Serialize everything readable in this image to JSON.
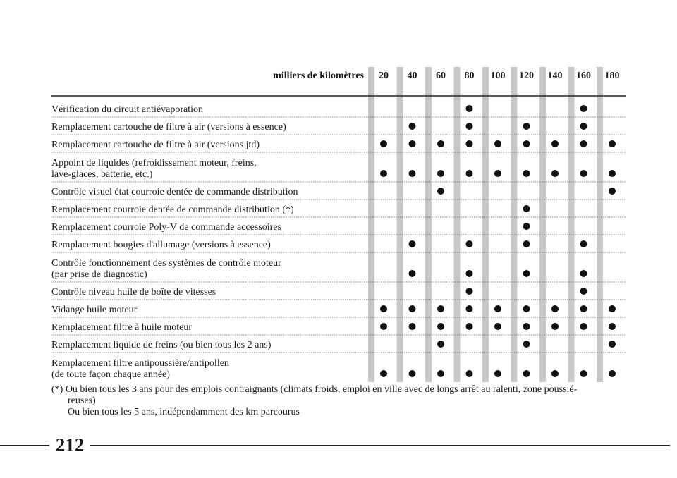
{
  "table": {
    "header_label": "milliers de kilomètres",
    "columns": [
      20,
      40,
      60,
      80,
      100,
      120,
      140,
      160,
      180
    ],
    "rows": [
      {
        "label": [
          "Vérification du circuit antiévaporation"
        ],
        "km": [
          80,
          160
        ]
      },
      {
        "label": [
          "Remplacement cartouche de filtre à air (versions à essence)"
        ],
        "km": [
          40,
          80,
          120,
          160
        ]
      },
      {
        "label": [
          "Remplacement cartouche de filtre à air (versions jtd)"
        ],
        "km": [
          20,
          40,
          60,
          80,
          100,
          120,
          140,
          160,
          180
        ]
      },
      {
        "label": [
          "Appoint de liquides (refroidissement moteur, freins,",
          "lave-glaces, batterie, etc.)"
        ],
        "km": [
          20,
          40,
          60,
          80,
          100,
          120,
          140,
          160,
          180
        ]
      },
      {
        "label": [
          "Contrôle visuel état courroie dentée de commande distribution"
        ],
        "km": [
          60,
          180
        ]
      },
      {
        "label": [
          "Remplacement courroie dentée de commande distribution (*)"
        ],
        "km": [
          120
        ]
      },
      {
        "label": [
          "Remplacement courroie Poly-V de commande accessoires"
        ],
        "km": [
          120
        ]
      },
      {
        "label": [
          "Remplacement bougies d'allumage (versions à essence)"
        ],
        "km": [
          40,
          80,
          120,
          160
        ]
      },
      {
        "label": [
          "Contrôle fonctionnement des systèmes de contrôle moteur",
          "(par prise de diagnostic)"
        ],
        "km": [
          40,
          80,
          120,
          160
        ]
      },
      {
        "label": [
          "Contrôle niveau huile de boîte de vitesses"
        ],
        "km": [
          80,
          160
        ]
      },
      {
        "label": [
          "Vidange huile moteur"
        ],
        "km": [
          20,
          40,
          60,
          80,
          100,
          120,
          140,
          160,
          180
        ]
      },
      {
        "label": [
          "Remplacement filtre à huile moteur"
        ],
        "km": [
          20,
          40,
          60,
          80,
          100,
          120,
          140,
          160,
          180
        ]
      },
      {
        "label": [
          "Remplacement liquide de freins (ou bien tous les 2 ans)"
        ],
        "km": [
          60,
          120,
          180
        ]
      },
      {
        "label": [
          "Remplacement filtre antipoussière/antipollen",
          "(de toute façon chaque année)"
        ],
        "km": [
          20,
          40,
          60,
          80,
          100,
          120,
          140,
          160,
          180
        ]
      }
    ],
    "footnote": [
      "(*) Ou bien tous les 3 ans pour des emplois contraignants (climats froids, emploi en ville avec de longs arrêt au ralenti, zone poussié-",
      "reuses)",
      "Ou bien tous les 5 ans, indépendamment des km parcourus"
    ]
  },
  "page_number": "212"
}
